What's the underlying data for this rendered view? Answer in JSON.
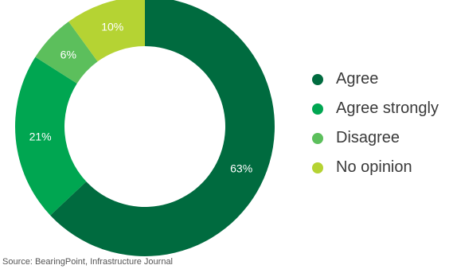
{
  "chart_data": {
    "type": "pie",
    "donut": true,
    "categories": [
      "Agree",
      "Agree strongly",
      "Disagree",
      "No opinion"
    ],
    "values": [
      63,
      21,
      6,
      10
    ],
    "labels": [
      "63%",
      "21%",
      "6%",
      "10%"
    ],
    "colors": [
      "#006b3f",
      "#00a651",
      "#5cbf5c",
      "#b5d333"
    ],
    "legend_position": "right"
  },
  "legend": [
    {
      "label": "Agree",
      "color": "#006b3f"
    },
    {
      "label": "Agree strongly",
      "color": "#00a651"
    },
    {
      "label": "Disagree",
      "color": "#5cbf5c"
    },
    {
      "label": "No opinion",
      "color": "#b5d333"
    }
  ],
  "source": "Source: BearingPoint, Infrastructure Journal"
}
